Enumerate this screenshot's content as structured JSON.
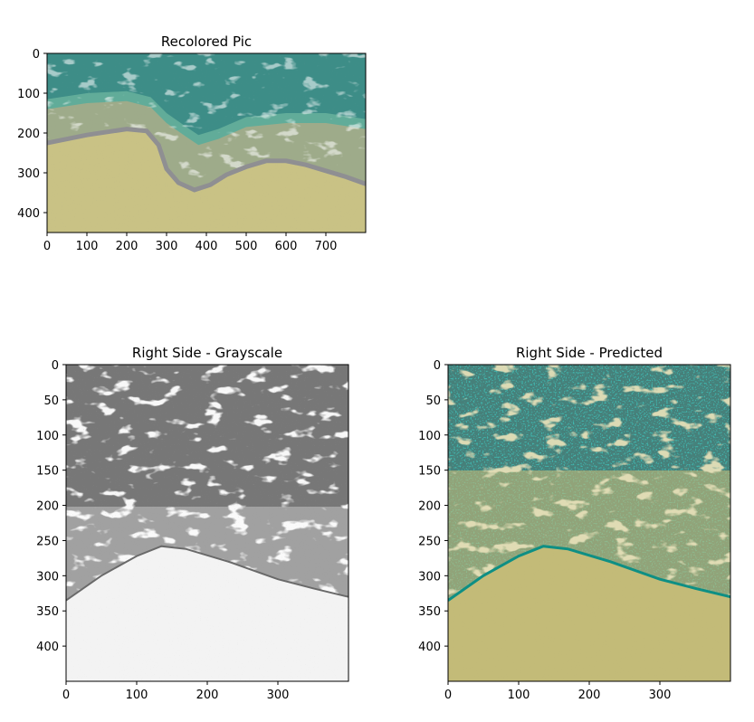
{
  "chart_data": [
    {
      "type": "image",
      "title": "Recolored Pic",
      "xlim": [
        0,
        800
      ],
      "ylim": [
        450,
        0
      ],
      "xticks": [
        0,
        100,
        200,
        300,
        400,
        500,
        600,
        700
      ],
      "yticks": [
        0,
        100,
        200,
        300,
        400
      ],
      "shoreline": [
        [
          0,
          225
        ],
        [
          100,
          205
        ],
        [
          200,
          190
        ],
        [
          250,
          195
        ],
        [
          280,
          230
        ],
        [
          300,
          290
        ],
        [
          330,
          325
        ],
        [
          370,
          343
        ],
        [
          410,
          330
        ],
        [
          450,
          305
        ],
        [
          500,
          285
        ],
        [
          550,
          270
        ],
        [
          600,
          270
        ],
        [
          650,
          280
        ],
        [
          700,
          295
        ],
        [
          750,
          310
        ],
        [
          800,
          328
        ]
      ],
      "wet_band_edge": [
        [
          0,
          140
        ],
        [
          100,
          125
        ],
        [
          200,
          120
        ],
        [
          260,
          135
        ],
        [
          300,
          175
        ],
        [
          350,
          210
        ],
        [
          380,
          230
        ],
        [
          430,
          215
        ],
        [
          500,
          185
        ],
        [
          600,
          175
        ],
        [
          700,
          175
        ],
        [
          800,
          190
        ]
      ],
      "colors": {
        "water": "#3d8d87",
        "foam": "#9ad2c0",
        "wet_band": "#c48a66",
        "sand": "#c9c285",
        "shore_line": "#8f8f92"
      }
    },
    {
      "type": "image",
      "title": "Right Side - Grayscale",
      "xlim": [
        0,
        400
      ],
      "ylim": [
        450,
        0
      ],
      "xticks": [
        0,
        100,
        200,
        300
      ],
      "yticks": [
        0,
        50,
        100,
        150,
        200,
        250,
        300,
        350,
        400
      ],
      "shoreline": [
        [
          0,
          335
        ],
        [
          50,
          300
        ],
        [
          100,
          272
        ],
        [
          135,
          258
        ],
        [
          170,
          262
        ],
        [
          230,
          280
        ],
        [
          300,
          305
        ],
        [
          350,
          318
        ],
        [
          400,
          330
        ]
      ],
      "colors": {
        "water": "#777777",
        "foam": "#f2f2f2",
        "sand": "#f3f3f3",
        "line": "#6a6a6a"
      }
    },
    {
      "type": "image",
      "title": "Right Side - Predicted",
      "xlim": [
        0,
        400
      ],
      "ylim": [
        450,
        0
      ],
      "xticks": [
        0,
        100,
        200,
        300
      ],
      "yticks": [
        0,
        50,
        100,
        150,
        200,
        250,
        300,
        350,
        400
      ],
      "shoreline": [
        [
          0,
          335
        ],
        [
          50,
          300
        ],
        [
          100,
          272
        ],
        [
          135,
          258
        ],
        [
          170,
          262
        ],
        [
          230,
          280
        ],
        [
          300,
          305
        ],
        [
          350,
          318
        ],
        [
          400,
          330
        ]
      ],
      "colors": {
        "water": "#46807a",
        "teal": "#1a9a86",
        "sand": "#c3bb78",
        "line": "#0e8f84"
      }
    }
  ]
}
